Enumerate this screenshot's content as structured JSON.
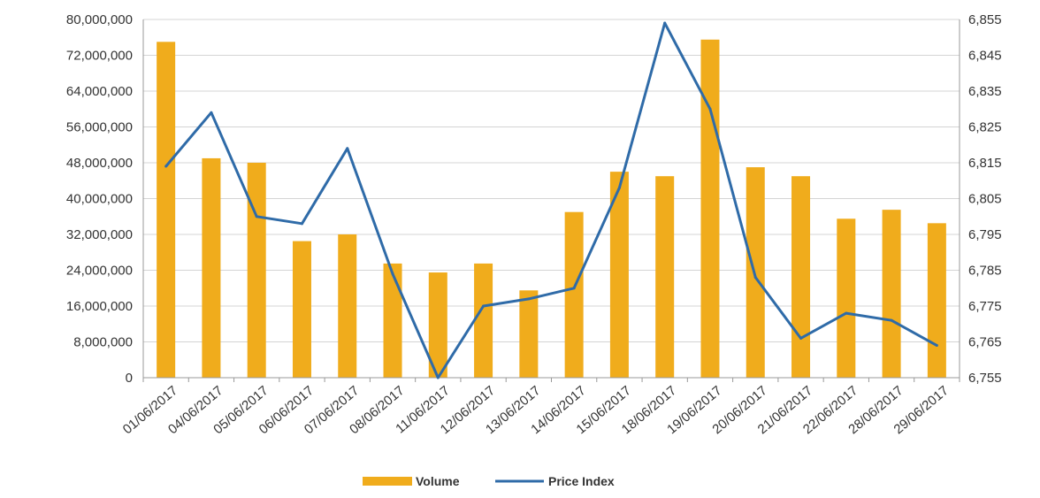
{
  "chart_data": {
    "type": "bar",
    "title": "",
    "xlabel": "",
    "ylabel": "",
    "y2label": "",
    "categories": [
      "01/06/2017",
      "04/06/2017",
      "05/06/2017",
      "06/06/2017",
      "07/06/2017",
      "08/06/2017",
      "11/06/2017",
      "12/06/2017",
      "13/06/2017",
      "14/06/2017",
      "15/06/2017",
      "18/06/2017",
      "19/06/2017",
      "20/06/2017",
      "21/06/2017",
      "22/06/2017",
      "28/06/2017",
      "29/06/2017"
    ],
    "series": [
      {
        "name": "Volume",
        "type": "bar",
        "axis": "left",
        "color": "#F0AC1C",
        "values": [
          75000000,
          49000000,
          48000000,
          30500000,
          32000000,
          25500000,
          23500000,
          25500000,
          19500000,
          37000000,
          46000000,
          45000000,
          75500000,
          47000000,
          45000000,
          35500000,
          37500000,
          34500000
        ]
      },
      {
        "name": "Price Index",
        "type": "line",
        "axis": "right",
        "color": "#2F6BA8",
        "values": [
          6814,
          6829,
          6800,
          6798,
          6819,
          6784,
          6755,
          6775,
          6777,
          6780,
          6808,
          6854,
          6830,
          6783,
          6766,
          6773,
          6771,
          6764
        ]
      }
    ],
    "y_left": {
      "ylim": [
        0,
        80000000
      ],
      "ticks": [
        "0",
        "8,000,000",
        "16,000,000",
        "24,000,000",
        "32,000,000",
        "40,000,000",
        "48,000,000",
        "56,000,000",
        "64,000,000",
        "72,000,000",
        "80,000,000"
      ]
    },
    "y_right": {
      "ylim": [
        6755,
        6855
      ],
      "ticks": [
        "6,755",
        "6,765",
        "6,775",
        "6,785",
        "6,795",
        "6,805",
        "6,815",
        "6,825",
        "6,835",
        "6,845",
        "6,855"
      ]
    },
    "grid": true,
    "legend_position": "bottom"
  }
}
